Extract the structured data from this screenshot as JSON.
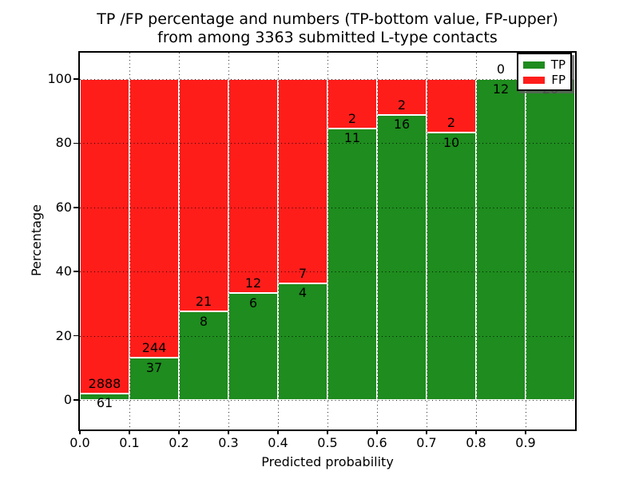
{
  "figure": {
    "title_line1": "TP /FP percentage and numbers (TP-bottom value, FP-upper)",
    "title_line2": "from among 3363 submitted L-type contacts",
    "xlabel": "Predicted probability",
    "ylabel": "Percentage"
  },
  "legend": {
    "tp_label": "TP",
    "fp_label": "FP"
  },
  "colors": {
    "tp_green": "#1e8c1e",
    "fp_red": "#ff1d1a",
    "bar_edge": "#ffffff",
    "grid": "#000000"
  },
  "chart_data": {
    "type": "bar",
    "stacked": true,
    "normalized_to_percent": true,
    "title": "TP /FP percentage and numbers (TP-bottom value, FP-upper) from among 3363 submitted L-type contacts",
    "xlabel": "Predicted probability",
    "ylabel": "Percentage",
    "total_submitted": 3363,
    "bin_width": 0.1,
    "categories": [
      "0.0-0.1",
      "0.1-0.2",
      "0.2-0.3",
      "0.3-0.4",
      "0.4-0.5",
      "0.5-0.6",
      "0.6-0.7",
      "0.7-0.8",
      "0.8-0.9",
      "0.9-1.0"
    ],
    "series": [
      {
        "name": "TP",
        "color": "#1e8c1e",
        "values": [
          61,
          37,
          8,
          6,
          4,
          11,
          16,
          10,
          12,
          20
        ]
      },
      {
        "name": "FP",
        "color": "#ff1d1a",
        "values": [
          2888,
          244,
          21,
          12,
          7,
          2,
          2,
          2,
          0,
          0
        ]
      }
    ],
    "tp_percent": [
      2.07,
      13.17,
      27.59,
      33.33,
      36.36,
      84.62,
      88.89,
      83.33,
      100.0,
      100.0
    ],
    "x_tick_labels": [
      "0.0",
      "0.1",
      "0.2",
      "0.3",
      "0.4",
      "0.5",
      "0.6",
      "0.7",
      "0.8",
      "0.9"
    ],
    "y_ticks": [
      0,
      20,
      40,
      60,
      80,
      100
    ],
    "xlim": [
      0.0,
      1.0
    ],
    "ylim": [
      -9,
      108
    ],
    "grid": true,
    "grid_style": "dotted",
    "legend_position": "upper right"
  }
}
